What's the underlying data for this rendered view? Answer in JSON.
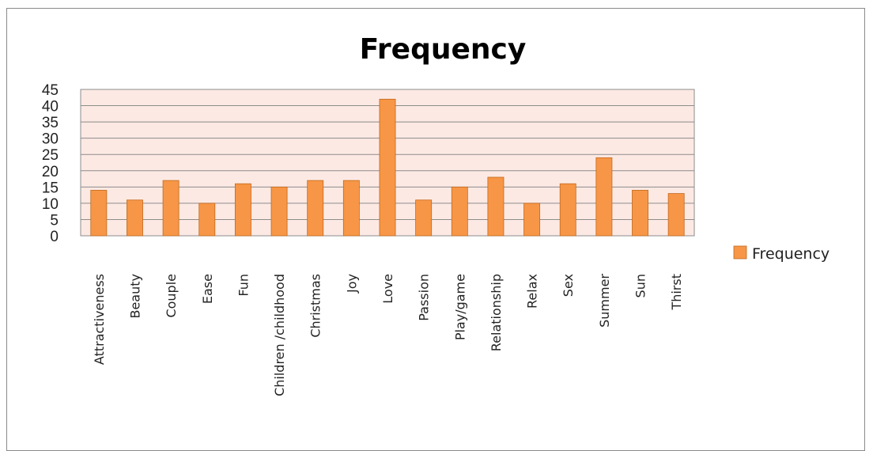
{
  "chart_data": {
    "type": "bar",
    "title": "Frequency",
    "xlabel": "",
    "ylabel": "",
    "ylim": [
      0,
      45
    ],
    "yticks": [
      0,
      5,
      10,
      15,
      20,
      25,
      30,
      35,
      40,
      45
    ],
    "categories": [
      "Attractiveness",
      "Beauty",
      "Couple",
      "Ease",
      "Fun",
      "Children /childhood",
      "Christmas",
      "Joy",
      "Love",
      "Passion",
      "Play/game",
      "Relationship",
      "Relax",
      "Sex",
      "Summer",
      "Sun",
      "Thirst"
    ],
    "series": [
      {
        "name": "Frequency",
        "values": [
          14,
          11,
          17,
          10,
          16,
          15,
          17,
          17,
          42,
          11,
          15,
          18,
          10,
          16,
          24,
          14,
          13
        ]
      }
    ],
    "grid": true,
    "legend": "right",
    "colors": {
      "bar": "#F79646",
      "bar_stroke": "#C0691E",
      "plot_bg": "#FDE9E3",
      "grid": "#8c8c8c"
    }
  }
}
